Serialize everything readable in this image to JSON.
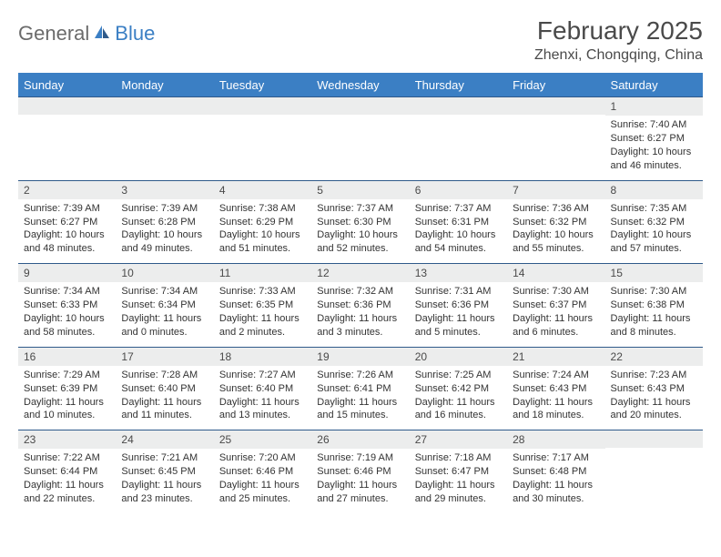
{
  "logo": {
    "part1": "General",
    "part2": "Blue"
  },
  "title": "February 2025",
  "location": "Zhenxi, Chongqing, China",
  "colors": {
    "header_bg": "#3b7fc4",
    "header_text": "#ffffff",
    "daynum_bg": "#eceded",
    "border": "#2f5a8a",
    "text": "#333333"
  },
  "dayNames": [
    "Sunday",
    "Monday",
    "Tuesday",
    "Wednesday",
    "Thursday",
    "Friday",
    "Saturday"
  ],
  "weeks": [
    [
      null,
      null,
      null,
      null,
      null,
      null,
      {
        "n": "1",
        "sunrise": "7:40 AM",
        "sunset": "6:27 PM",
        "daylight": "10 hours and 46 minutes."
      }
    ],
    [
      {
        "n": "2",
        "sunrise": "7:39 AM",
        "sunset": "6:27 PM",
        "daylight": "10 hours and 48 minutes."
      },
      {
        "n": "3",
        "sunrise": "7:39 AM",
        "sunset": "6:28 PM",
        "daylight": "10 hours and 49 minutes."
      },
      {
        "n": "4",
        "sunrise": "7:38 AM",
        "sunset": "6:29 PM",
        "daylight": "10 hours and 51 minutes."
      },
      {
        "n": "5",
        "sunrise": "7:37 AM",
        "sunset": "6:30 PM",
        "daylight": "10 hours and 52 minutes."
      },
      {
        "n": "6",
        "sunrise": "7:37 AM",
        "sunset": "6:31 PM",
        "daylight": "10 hours and 54 minutes."
      },
      {
        "n": "7",
        "sunrise": "7:36 AM",
        "sunset": "6:32 PM",
        "daylight": "10 hours and 55 minutes."
      },
      {
        "n": "8",
        "sunrise": "7:35 AM",
        "sunset": "6:32 PM",
        "daylight": "10 hours and 57 minutes."
      }
    ],
    [
      {
        "n": "9",
        "sunrise": "7:34 AM",
        "sunset": "6:33 PM",
        "daylight": "10 hours and 58 minutes."
      },
      {
        "n": "10",
        "sunrise": "7:34 AM",
        "sunset": "6:34 PM",
        "daylight": "11 hours and 0 minutes."
      },
      {
        "n": "11",
        "sunrise": "7:33 AM",
        "sunset": "6:35 PM",
        "daylight": "11 hours and 2 minutes."
      },
      {
        "n": "12",
        "sunrise": "7:32 AM",
        "sunset": "6:36 PM",
        "daylight": "11 hours and 3 minutes."
      },
      {
        "n": "13",
        "sunrise": "7:31 AM",
        "sunset": "6:36 PM",
        "daylight": "11 hours and 5 minutes."
      },
      {
        "n": "14",
        "sunrise": "7:30 AM",
        "sunset": "6:37 PM",
        "daylight": "11 hours and 6 minutes."
      },
      {
        "n": "15",
        "sunrise": "7:30 AM",
        "sunset": "6:38 PM",
        "daylight": "11 hours and 8 minutes."
      }
    ],
    [
      {
        "n": "16",
        "sunrise": "7:29 AM",
        "sunset": "6:39 PM",
        "daylight": "11 hours and 10 minutes."
      },
      {
        "n": "17",
        "sunrise": "7:28 AM",
        "sunset": "6:40 PM",
        "daylight": "11 hours and 11 minutes."
      },
      {
        "n": "18",
        "sunrise": "7:27 AM",
        "sunset": "6:40 PM",
        "daylight": "11 hours and 13 minutes."
      },
      {
        "n": "19",
        "sunrise": "7:26 AM",
        "sunset": "6:41 PM",
        "daylight": "11 hours and 15 minutes."
      },
      {
        "n": "20",
        "sunrise": "7:25 AM",
        "sunset": "6:42 PM",
        "daylight": "11 hours and 16 minutes."
      },
      {
        "n": "21",
        "sunrise": "7:24 AM",
        "sunset": "6:43 PM",
        "daylight": "11 hours and 18 minutes."
      },
      {
        "n": "22",
        "sunrise": "7:23 AM",
        "sunset": "6:43 PM",
        "daylight": "11 hours and 20 minutes."
      }
    ],
    [
      {
        "n": "23",
        "sunrise": "7:22 AM",
        "sunset": "6:44 PM",
        "daylight": "11 hours and 22 minutes."
      },
      {
        "n": "24",
        "sunrise": "7:21 AM",
        "sunset": "6:45 PM",
        "daylight": "11 hours and 23 minutes."
      },
      {
        "n": "25",
        "sunrise": "7:20 AM",
        "sunset": "6:46 PM",
        "daylight": "11 hours and 25 minutes."
      },
      {
        "n": "26",
        "sunrise": "7:19 AM",
        "sunset": "6:46 PM",
        "daylight": "11 hours and 27 minutes."
      },
      {
        "n": "27",
        "sunrise": "7:18 AM",
        "sunset": "6:47 PM",
        "daylight": "11 hours and 29 minutes."
      },
      {
        "n": "28",
        "sunrise": "7:17 AM",
        "sunset": "6:48 PM",
        "daylight": "11 hours and 30 minutes."
      },
      null
    ]
  ],
  "labels": {
    "sunrise": "Sunrise: ",
    "sunset": "Sunset: ",
    "daylight": "Daylight: "
  }
}
